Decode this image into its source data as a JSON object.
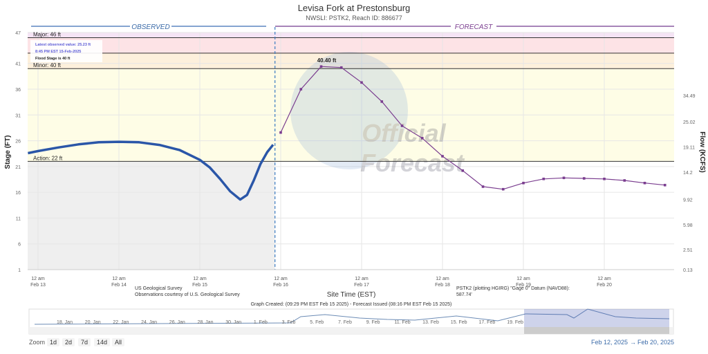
{
  "title": "Levisa Fork at Prestonsburg",
  "subtitle": "NWSLI: PSTK2, Reach ID: 886677",
  "colors": {
    "observed": "#2a56a8",
    "forecast": "#7a3d8f",
    "major": "#f5e4f5",
    "moderate": "#fde3e6",
    "minor": "#fdf0dc",
    "action": "#fefde6",
    "below": "#efefef"
  },
  "header": {
    "observed": "OBSERVED",
    "forecast": "FORECAST"
  },
  "thresholds": {
    "major": {
      "label": "Major: 46 ft",
      "value": 46
    },
    "moderate": {
      "value": 43
    },
    "minor": {
      "label": "Minor: 40 ft",
      "value": 40
    },
    "action": {
      "label": "Action: 22 ft",
      "value": 22
    }
  },
  "tooltip": {
    "line1": "Latest observed value: 25.23 ft",
    "line2": "8:45 PM EST 15-Feb-2025",
    "line3": "Flood Stage is 40 ft"
  },
  "watermark": {
    "line1": "Official",
    "line2": "Forecast",
    "seal": "NOAA"
  },
  "chart_data": {
    "type": "line",
    "ylabel": "Stage (FT)",
    "y2label": "Flow (KCFS)",
    "xlabel": "Site Time (EST)",
    "ylim": [
      1,
      47
    ],
    "yticks": [
      47,
      41,
      36,
      31,
      26,
      21,
      16,
      11,
      6,
      1
    ],
    "y2ticks": [
      {
        "stage": 34.8,
        "label": "34.49"
      },
      {
        "stage": 29.7,
        "label": "25.02"
      },
      {
        "stage": 24.8,
        "label": "19.11"
      },
      {
        "stage": 19.9,
        "label": "14.2"
      },
      {
        "stage": 14.6,
        "label": "9.92"
      },
      {
        "stage": 9.7,
        "label": "5.98"
      },
      {
        "stage": 4.9,
        "label": "2.51"
      },
      {
        "stage": 1,
        "label": "0.13"
      }
    ],
    "xticks": [
      {
        "t": 0,
        "l1": "12 am",
        "l2": "Feb 13"
      },
      {
        "t": 24,
        "l1": "12 am",
        "l2": "Feb 14"
      },
      {
        "t": 48,
        "l1": "12 am",
        "l2": "Feb 15"
      },
      {
        "t": 72,
        "l1": "12 am",
        "l2": "Feb 16"
      },
      {
        "t": 96,
        "l1": "12 am",
        "l2": "Feb 17"
      },
      {
        "t": 120,
        "l1": "12 am",
        "l2": "Feb 18"
      },
      {
        "t": 144,
        "l1": "12 am",
        "l2": "Feb 19"
      },
      {
        "t": 168,
        "l1": "12 am",
        "l2": "Feb 20"
      }
    ],
    "series": [
      {
        "name": "Observed",
        "x_hours_from_feb13": [
          -3,
          0,
          6,
          12,
          18,
          24,
          30,
          36,
          42,
          48,
          51,
          54,
          57,
          60,
          62,
          64,
          66,
          68,
          69.75
        ],
        "values": [
          23.6,
          24.0,
          24.7,
          25.3,
          25.7,
          25.8,
          25.7,
          25.2,
          24.2,
          22.3,
          20.8,
          18.6,
          16.2,
          14.6,
          15.5,
          18.3,
          21.5,
          23.8,
          25.23
        ]
      },
      {
        "name": "Forecast",
        "x_hours_from_feb13": [
          72,
          78,
          84,
          90,
          96,
          102,
          108,
          114,
          120,
          126,
          132,
          138,
          144,
          150,
          156,
          162,
          168,
          174,
          180,
          186
        ],
        "values": [
          27.6,
          36.0,
          40.4,
          40.2,
          37.3,
          33.6,
          28.9,
          26.5,
          23.0,
          20.2,
          17.1,
          16.6,
          17.8,
          18.6,
          18.8,
          18.7,
          18.6,
          18.3,
          17.8,
          17.4
        ]
      }
    ],
    "peak_label": "40.40 ft",
    "now_hours_from_feb13": 70.3
  },
  "notes": {
    "usgs1": "US Geological Survey",
    "usgs2": "Observations courtesy of U.S. Geological Survey",
    "datum1": "PSTK2 (plotting HGIRG) \"Gage 0\" Datum (NAVD88):",
    "datum2": "587.74'",
    "created": "Graph Created: (09:29 PM EST Feb 15 2025) - Forecast Issued (08:16 PM EST Feb 15 2025)"
  },
  "navigator": {
    "labels": [
      "18. Jan",
      "20. Jan",
      "22. Jan",
      "24. Jan",
      "26. Jan",
      "28. Jan",
      "30. Jan",
      "1. Feb",
      "3. Feb",
      "5. Feb",
      "7. Feb",
      "9. Feb",
      "11. Feb",
      "13. Feb",
      "15. Feb",
      "17. Feb",
      "19. Feb"
    ]
  },
  "zoom": {
    "label": "Zoom",
    "buttons": [
      "1d",
      "2d",
      "7d",
      "14d",
      "All"
    ]
  },
  "range": {
    "from": "Feb 12, 2025",
    "arrow": "→",
    "to": "Feb 20, 2025"
  }
}
